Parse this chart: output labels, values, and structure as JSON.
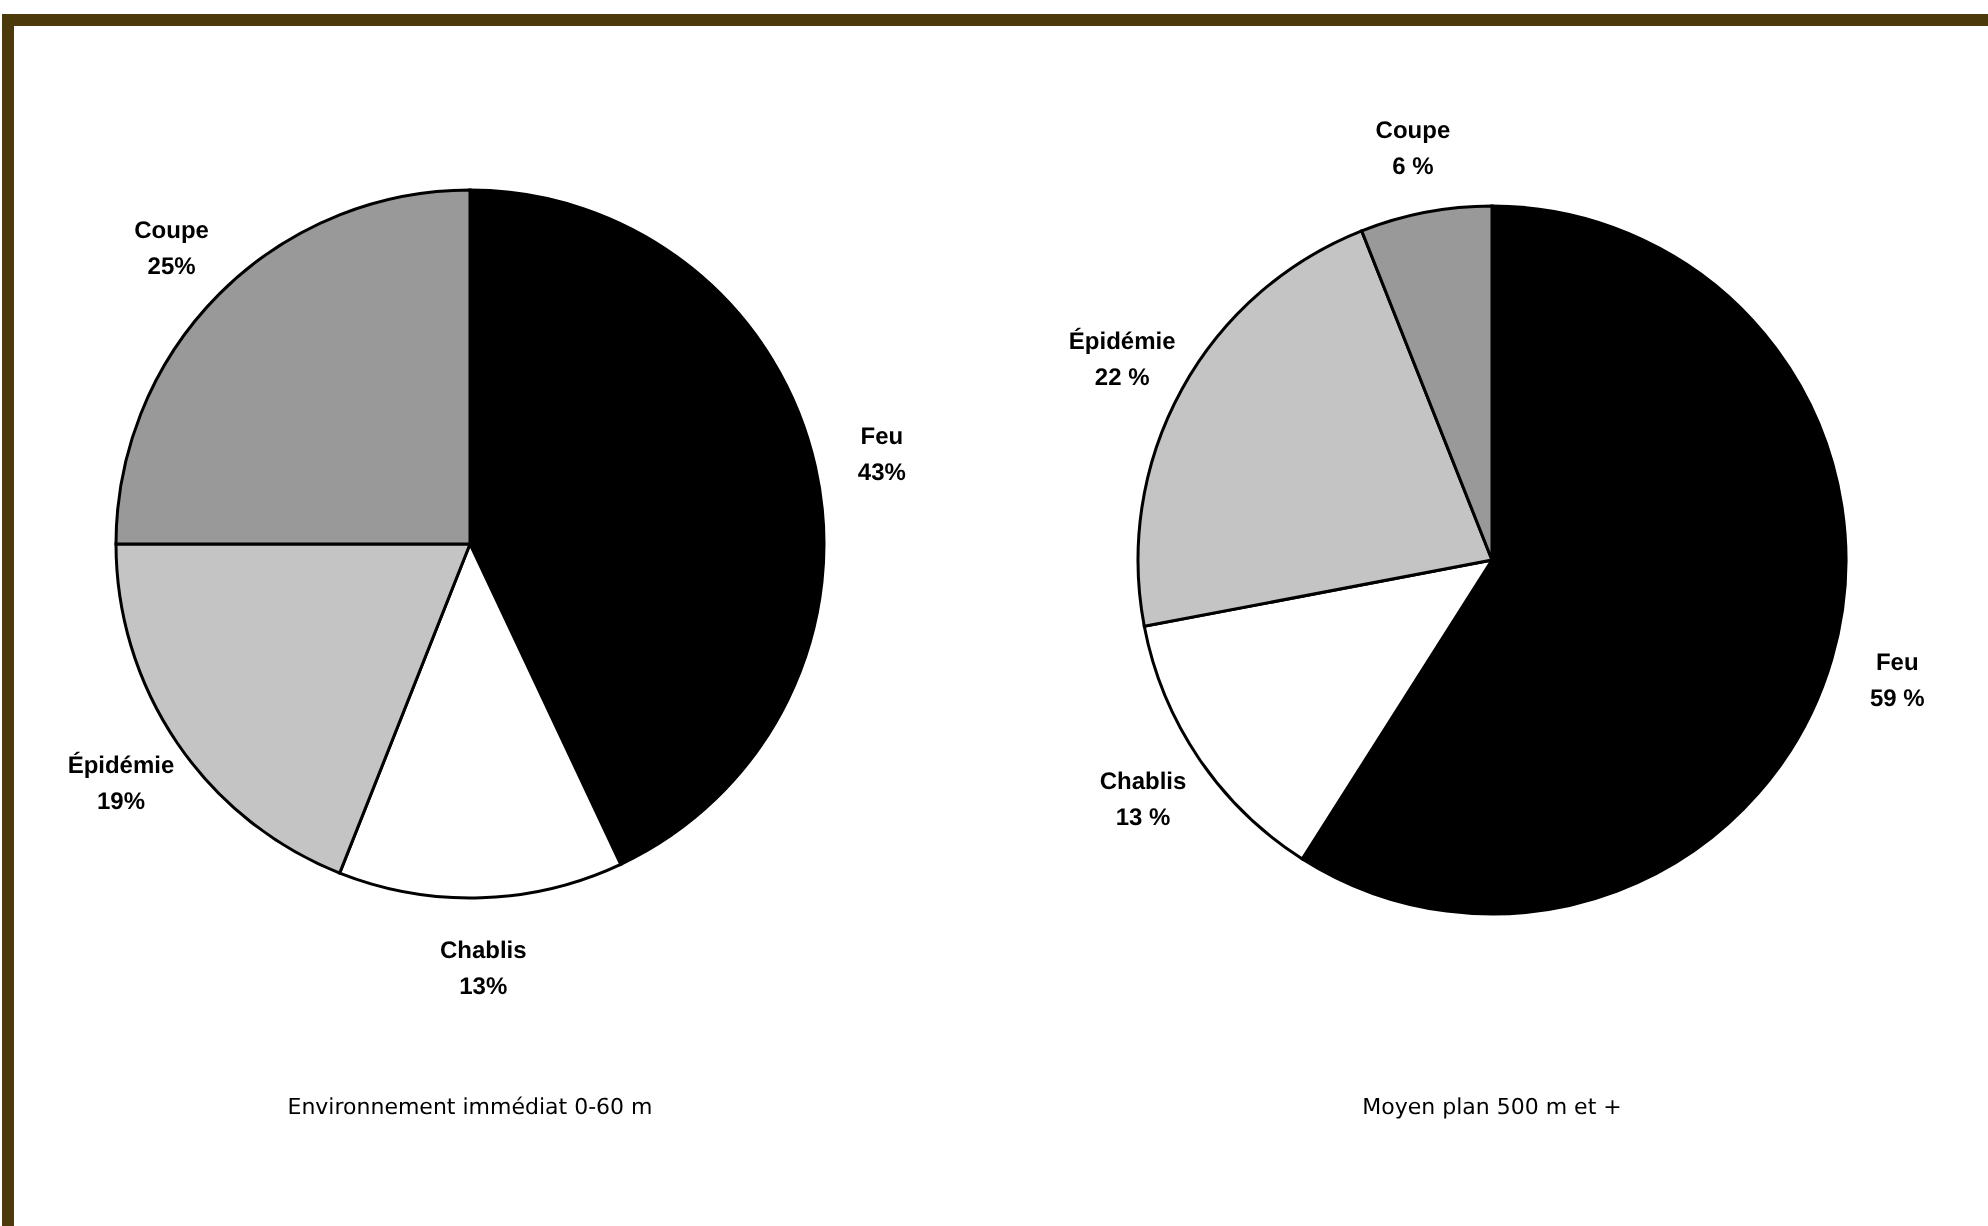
{
  "chart_data": [
    {
      "type": "pie",
      "title": "Environnement immédiat 0-60 m",
      "categories": [
        "Feu",
        "Chablis",
        "Épidémie",
        "Coupe"
      ],
      "values": [
        43,
        13,
        19,
        25
      ],
      "colors": [
        "#000000",
        "#ffffff",
        "#c4c4c4",
        "#999999"
      ],
      "value_labels": [
        "43%",
        "13%",
        "19%",
        "25%"
      ]
    },
    {
      "type": "pie",
      "title": "Moyen plan 500 m et +",
      "categories": [
        "Feu",
        "Chablis",
        "Épidémie",
        "Coupe"
      ],
      "values": [
        59,
        13,
        22,
        6
      ],
      "colors": [
        "#000000",
        "#ffffff",
        "#c4c4c4",
        "#999999"
      ],
      "value_labels": [
        "59 %",
        "13 %",
        "22 %",
        "6 %"
      ]
    }
  ]
}
